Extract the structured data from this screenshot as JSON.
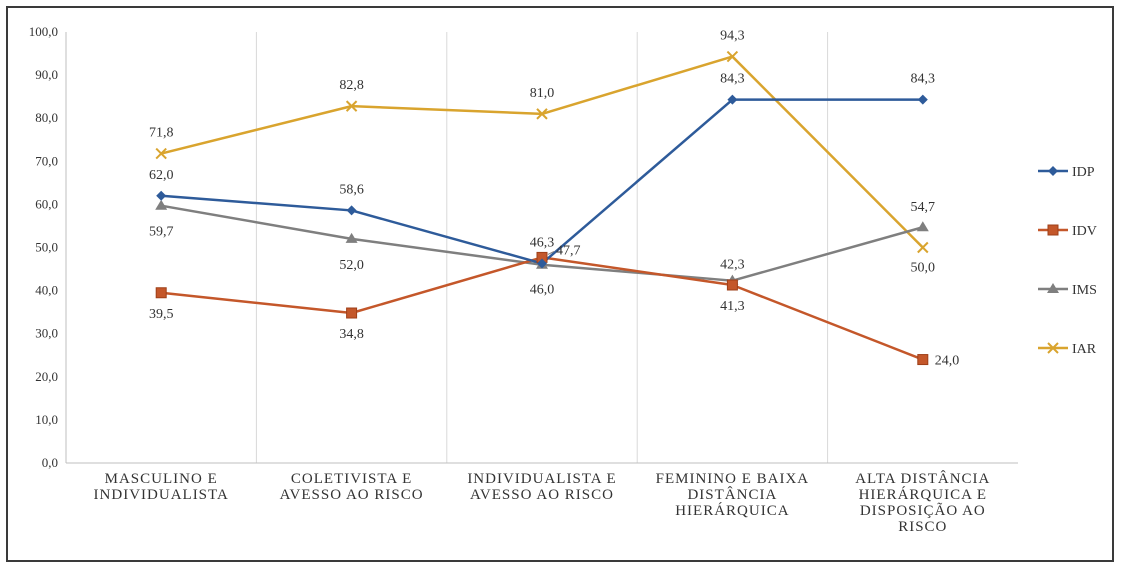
{
  "chart_data": {
    "type": "line",
    "categories": [
      [
        "MASCULINO E",
        "INDIVIDUALISTA"
      ],
      [
        "COLETIVISTA E",
        "AVESSO AO RISCO"
      ],
      [
        "INDIVIDUALISTA E",
        "AVESSO AO RISCO"
      ],
      [
        "FEMININO E BAIXA",
        "DISTÂNCIA",
        "HIERÁRQUICA"
      ],
      [
        "ALTA DISTÂNCIA",
        "HIERÁRQUICA E",
        "DISPOSIÇÃO AO",
        "RISCO"
      ]
    ],
    "ylim": [
      0,
      100
    ],
    "yticks": [
      "0,0",
      "10,0",
      "20,0",
      "30,0",
      "40,0",
      "50,0",
      "60,0",
      "70,0",
      "80,0",
      "90,0",
      "100,0"
    ],
    "grid": "vertical",
    "legend": "right",
    "series": [
      {
        "name": "IDP",
        "color": "#2e5b9a",
        "marker": "diamond",
        "values": [
          62.0,
          58.6,
          46.3,
          84.3,
          84.3
        ],
        "labels": [
          "62,0",
          "58,6",
          "46,3",
          "84,3",
          "84,3"
        ]
      },
      {
        "name": "IDV",
        "color": "#c4572a",
        "marker": "square",
        "values": [
          39.5,
          34.8,
          47.7,
          41.3,
          24.0
        ],
        "labels": [
          "39,5",
          "34,8",
          "47,7",
          "41,3",
          "24,0"
        ]
      },
      {
        "name": "IMS",
        "color": "#7f7f7f",
        "marker": "triangle",
        "values": [
          59.7,
          52.0,
          46.0,
          42.3,
          54.7
        ],
        "labels": [
          "59,7",
          "52,0",
          "46,0",
          "42,3",
          "54,7"
        ]
      },
      {
        "name": "IAR",
        "color": "#d9a42e",
        "marker": "x",
        "values": [
          71.8,
          82.8,
          81.0,
          94.3,
          50.0
        ],
        "labels": [
          "71,8",
          "82,8",
          "81,0",
          "94,3",
          "50,0"
        ]
      }
    ]
  }
}
